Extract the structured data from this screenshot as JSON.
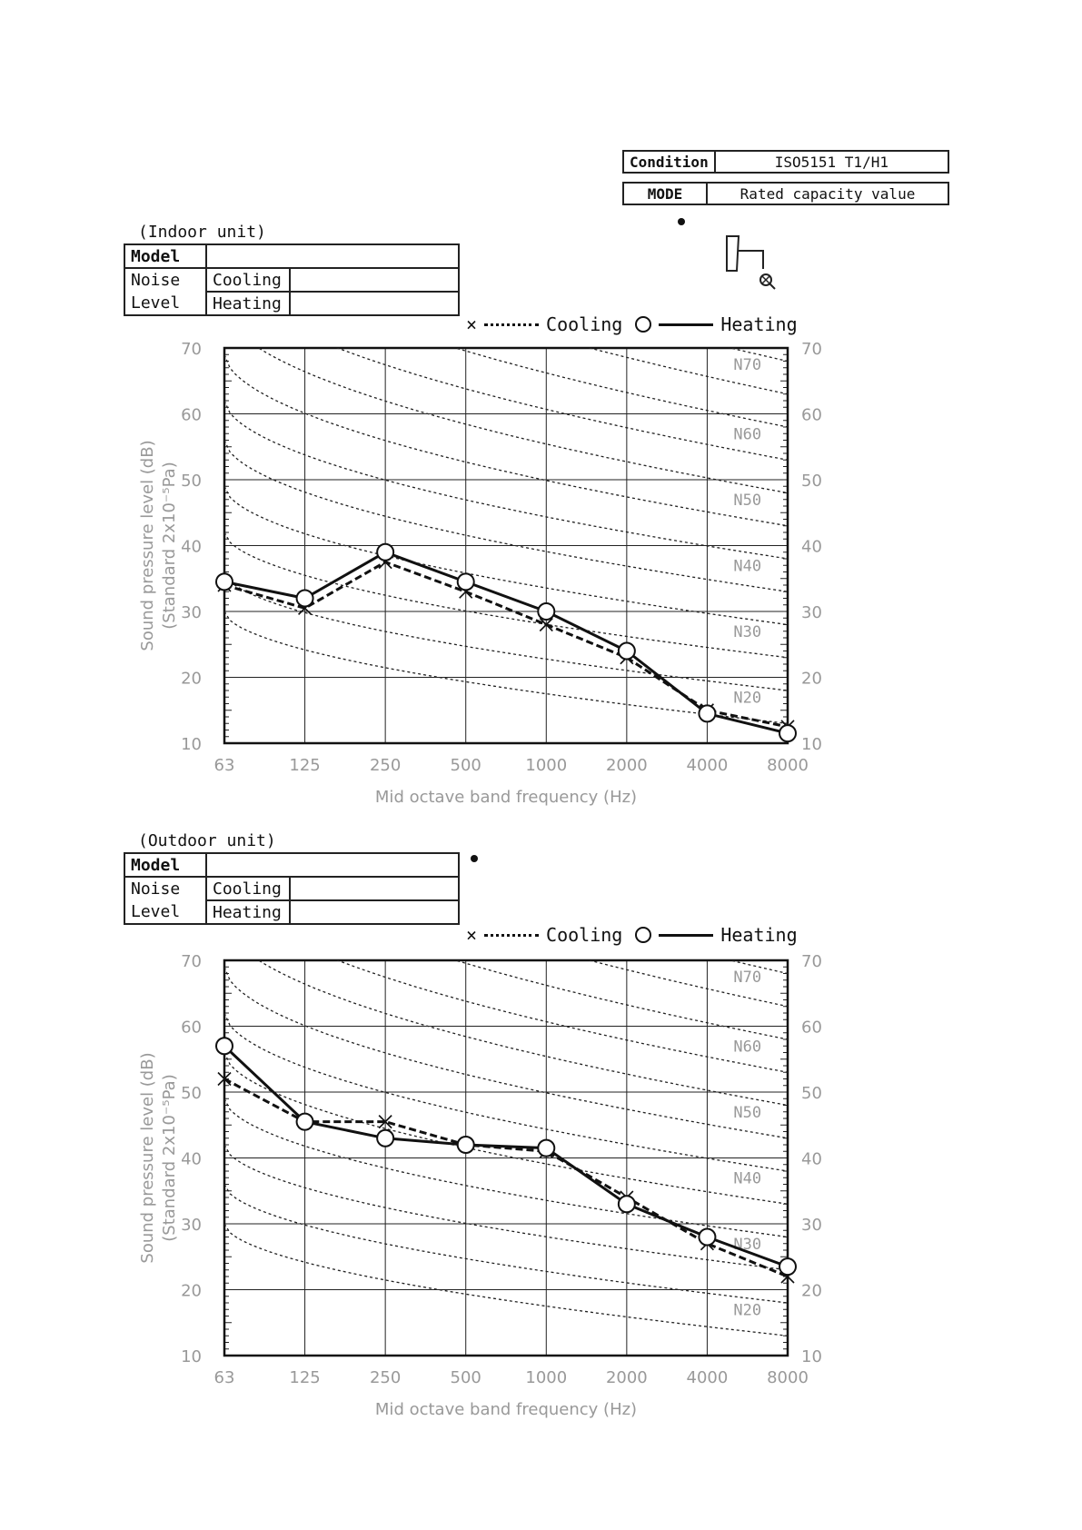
{
  "condition": {
    "condition_label": "Condition",
    "condition_value": "ISO5151 T1/H1",
    "mode_label": "MODE",
    "mode_value": "Rated capacity value"
  },
  "indoor": {
    "caption": "(Indoor unit)",
    "model_label": "Model",
    "model_value": "",
    "noise_label": "Noise",
    "level_label": "Level",
    "cooling_label": "Cooling",
    "heating_label": "Heating",
    "cooling_value": "",
    "heating_value": ""
  },
  "outdoor": {
    "caption": "(Outdoor unit)",
    "model_label": "Model",
    "model_value": "",
    "noise_label": "Noise",
    "level_label": "Level",
    "cooling_label": "Cooling",
    "heating_label": "Heating",
    "cooling_value": "",
    "heating_value": ""
  },
  "legend": {
    "cooling": "Cooling",
    "heating": "Heating"
  },
  "icons": [
    "microphone-position-icon"
  ],
  "chart_data": [
    {
      "type": "line",
      "categories": [
        "63",
        "125",
        "250",
        "500",
        "1000",
        "2000",
        "4000",
        "8000"
      ],
      "xlabel": "Mid octave band frequency (Hz)",
      "ylabel": "Sound pressure level (dB)",
      "ylabel2": "(Standard 2x10⁻⁵Pa)",
      "ylim": [
        10,
        70
      ],
      "yticks": [
        10,
        20,
        30,
        40,
        50,
        60,
        70
      ],
      "nc_labels": [
        "N70",
        "N60",
        "N50",
        "N40",
        "N30",
        "N20"
      ],
      "grid": true,
      "series": [
        {
          "name": "Cooling",
          "marker": "x",
          "style": "dashed",
          "values": [
            34,
            30.5,
            37.5,
            33,
            28,
            23,
            15,
            12.5
          ]
        },
        {
          "name": "Heating",
          "marker": "circle",
          "style": "solid",
          "values": [
            34.5,
            32,
            39,
            34.5,
            30,
            24,
            14.5,
            11.5
          ]
        }
      ]
    },
    {
      "type": "line",
      "categories": [
        "63",
        "125",
        "250",
        "500",
        "1000",
        "2000",
        "4000",
        "8000"
      ],
      "xlabel": "Mid octave band frequency (Hz)",
      "ylabel": "Sound pressure level (dB)",
      "ylabel2": "(Standard 2x10⁻⁵Pa)",
      "ylim": [
        10,
        70
      ],
      "yticks": [
        10,
        20,
        30,
        40,
        50,
        60,
        70
      ],
      "nc_labels": [
        "N70",
        "N60",
        "N50",
        "N40",
        "N30",
        "N20"
      ],
      "grid": true,
      "series": [
        {
          "name": "Cooling",
          "marker": "x",
          "style": "dashed",
          "values": [
            52,
            45.5,
            45.5,
            42,
            41,
            34,
            27,
            22
          ]
        },
        {
          "name": "Heating",
          "marker": "circle",
          "style": "solid",
          "values": [
            57,
            45.5,
            43,
            42,
            41.5,
            33,
            28,
            23.5
          ]
        }
      ]
    }
  ]
}
